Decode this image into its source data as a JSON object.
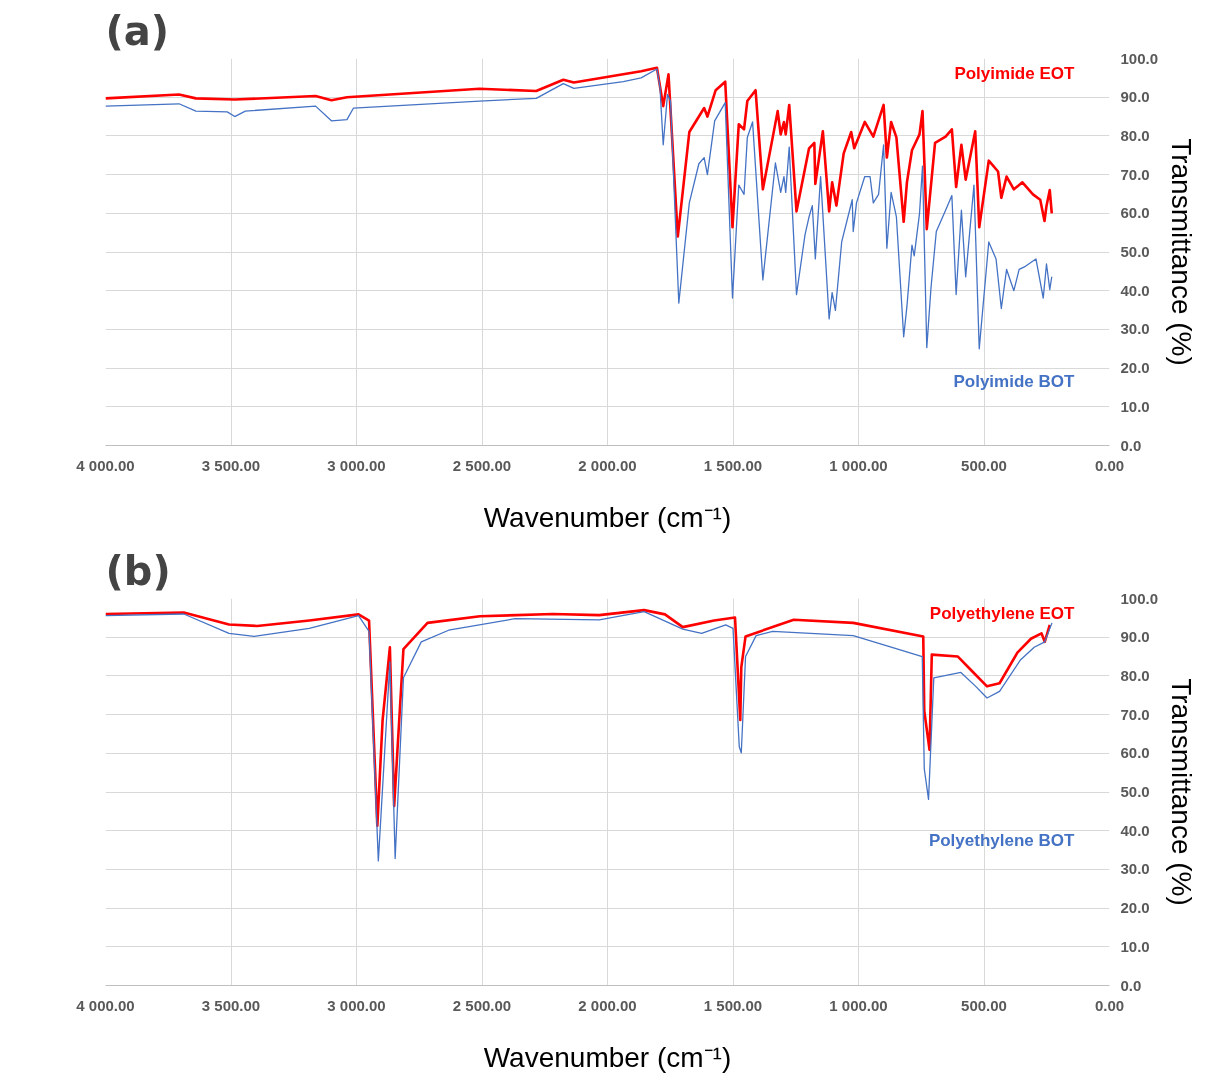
{
  "chart_data": [
    {
      "type": "line",
      "title": "(a)",
      "xlabel": "Wavenumber (cm⁻¹)",
      "ylabel": "Transmittance (%)",
      "xlim": [
        4000,
        0
      ],
      "ylim": [
        0,
        100
      ],
      "xticks": [
        {
          "value": 4000,
          "label": "4 000.00"
        },
        {
          "value": 3500,
          "label": "3 500.00"
        },
        {
          "value": 3000,
          "label": "3 000.00"
        },
        {
          "value": 2500,
          "label": "2 500.00"
        },
        {
          "value": 2000,
          "label": "2 000.00"
        },
        {
          "value": 1500,
          "label": "1 500.00"
        },
        {
          "value": 1000,
          "label": "1 000.00"
        },
        {
          "value": 500,
          "label": "500.00"
        },
        {
          "value": 0,
          "label": "0.00"
        }
      ],
      "yticks": [
        {
          "value": 0,
          "label": "0.0"
        },
        {
          "value": 10,
          "label": "10.0"
        },
        {
          "value": 20,
          "label": "20.0"
        },
        {
          "value": 30,
          "label": "30.0"
        },
        {
          "value": 40,
          "label": "40.0"
        },
        {
          "value": 50,
          "label": "50.0"
        },
        {
          "value": 60,
          "label": "60.0"
        },
        {
          "value": 70,
          "label": "70.0"
        },
        {
          "value": 80,
          "label": "80.0"
        },
        {
          "value": 90,
          "label": "90.0"
        },
        {
          "value": 100,
          "label": "100.0"
        }
      ],
      "grid": true,
      "series": [
        {
          "name": "Polyimide EOT",
          "color": "#ff0000",
          "x": [
            4000,
            3707,
            3640,
            3485,
            3163,
            3100,
            3038,
            2510,
            2284,
            2176,
            2134,
            1866,
            1803,
            1778,
            1757,
            1720,
            1674,
            1615,
            1602,
            1569,
            1531,
            1502,
            1477,
            1456,
            1443,
            1410,
            1381,
            1322,
            1310,
            1297,
            1290,
            1276,
            1247,
            1197,
            1176,
            1172,
            1142,
            1117,
            1105,
            1088,
            1059,
            1029,
            1017,
            975,
            941,
            900,
            887,
            870,
            849,
            820,
            807,
            787,
            757,
            745,
            728,
            695,
            653,
            628,
            611,
            590,
            573,
            535,
            519,
            481,
            444,
            431,
            410,
            381,
            347,
            305,
            276,
            259,
            251,
            238,
            230
          ],
          "values": [
            89.7,
            90.7,
            89.7,
            89.4,
            90.3,
            89.2,
            90,
            92.2,
            91.6,
            94.5,
            93.8,
            96.7,
            97.6,
            87.7,
            95.9,
            54,
            81,
            87.2,
            85,
            91.8,
            94,
            56.4,
            83,
            81.7,
            89,
            91.8,
            66.2,
            86.4,
            80.4,
            83.6,
            80.4,
            88,
            60.5,
            76.8,
            78.2,
            67.6,
            81.2,
            60.5,
            68,
            62,
            75.5,
            81,
            76.8,
            83.6,
            79.8,
            88,
            74.4,
            83.6,
            79.6,
            57.8,
            68,
            76.3,
            80.4,
            86.4,
            55.9,
            78.2,
            79.8,
            81.7,
            66.8,
            77.7,
            68.7,
            81.2,
            56.4,
            73.6,
            70.8,
            64,
            69.5,
            66.2,
            68,
            64.9,
            63.5,
            58,
            61.9,
            66,
            60
          ]
        },
        {
          "name": "Polyimide BOT",
          "color": "#4472c4",
          "x": [
            4000,
            3707,
            3640,
            3515,
            3485,
            3443,
            3163,
            3100,
            3038,
            3012,
            2510,
            2284,
            2176,
            2134,
            1937,
            1866,
            1803,
            1791,
            1778,
            1761,
            1749,
            1716,
            1674,
            1636,
            1615,
            1602,
            1573,
            1531,
            1502,
            1477,
            1456,
            1443,
            1422,
            1381,
            1331,
            1310,
            1297,
            1290,
            1276,
            1247,
            1213,
            1197,
            1184,
            1172,
            1151,
            1117,
            1105,
            1092,
            1067,
            1025,
            1021,
            1008,
            975,
            954,
            941,
            920,
            900,
            887,
            870,
            849,
            820,
            807,
            787,
            778,
            757,
            745,
            728,
            711,
            690,
            653,
            628,
            611,
            590,
            573,
            540,
            519,
            481,
            452,
            431,
            410,
            381,
            360,
            335,
            293,
            264,
            251,
            238,
            230
          ],
          "values": [
            87.7,
            88.3,
            86.4,
            86.2,
            85,
            86.4,
            87.7,
            83.9,
            84.2,
            87.2,
            89,
            89.7,
            93.5,
            92.3,
            94,
            95,
            97.3,
            92.6,
            77.7,
            90.7,
            89,
            36.8,
            62.7,
            72.8,
            74.4,
            70,
            83.9,
            88.6,
            38.1,
            67.3,
            64.9,
            79.6,
            83.6,
            42.8,
            73,
            65.4,
            69.5,
            65.4,
            77.1,
            39,
            54.5,
            59.1,
            62,
            48.2,
            69.5,
            32.7,
            39.5,
            34.9,
            52.6,
            63.5,
            55.3,
            62.7,
            69.5,
            69.5,
            62.7,
            64.9,
            77.7,
            51,
            65.4,
            59.1,
            28.1,
            36,
            51.8,
            49,
            59.9,
            72.2,
            25.3,
            40.9,
            55.3,
            60.8,
            64.6,
            39,
            60.8,
            43.6,
            67.3,
            25,
            52.6,
            48.2,
            35.4,
            45.5,
            40,
            45.5,
            46.3,
            48.2,
            38.1,
            46.9,
            40.3,
            43.6
          ]
        }
      ]
    },
    {
      "type": "line",
      "title": "(b)",
      "xlabel": "Wavenumber (cm⁻¹)",
      "ylabel": "Transmittance (%)",
      "xlim": [
        4000,
        0
      ],
      "ylim": [
        0,
        100
      ],
      "xticks": [
        {
          "value": 4000,
          "label": "4 000.00"
        },
        {
          "value": 3500,
          "label": "3 500.00"
        },
        {
          "value": 3000,
          "label": "3 000.00"
        },
        {
          "value": 2500,
          "label": "2 500.00"
        },
        {
          "value": 2000,
          "label": "2 000.00"
        },
        {
          "value": 1500,
          "label": "1 500.00"
        },
        {
          "value": 1000,
          "label": "1 000.00"
        },
        {
          "value": 500,
          "label": "500.00"
        },
        {
          "value": 0,
          "label": "0.00"
        }
      ],
      "yticks": [
        {
          "value": 0,
          "label": "0.0"
        },
        {
          "value": 10,
          "label": "10.0"
        },
        {
          "value": 20,
          "label": "20.0"
        },
        {
          "value": 30,
          "label": "30.0"
        },
        {
          "value": 40,
          "label": "40.0"
        },
        {
          "value": 50,
          "label": "50.0"
        },
        {
          "value": 60,
          "label": "60.0"
        },
        {
          "value": 70,
          "label": "70.0"
        },
        {
          "value": 80,
          "label": "80.0"
        },
        {
          "value": 90,
          "label": "90.0"
        },
        {
          "value": 100,
          "label": "100.0"
        }
      ],
      "grid": true,
      "series": [
        {
          "name": "Polyethylene EOT",
          "color": "#ff0000",
          "x": [
            4000,
            3688,
            3508,
            3396,
            3188,
            2992,
            2950,
            2917,
            2896,
            2867,
            2850,
            2813,
            2717,
            2508,
            2217,
            2033,
            1854,
            1771,
            1700,
            1575,
            1492,
            1471,
            1467,
            1450,
            1258,
            1021,
            742,
            738,
            717,
            708,
            604,
            550,
            488,
            438,
            367,
            313,
            271,
            258,
            238
          ],
          "values": [
            96,
            96.4,
            93.3,
            92.9,
            94.3,
            95.9,
            94.3,
            41.3,
            68.6,
            87.4,
            46.4,
            86.9,
            93.7,
            95.4,
            96,
            95.7,
            97,
            95.9,
            92.6,
            94.3,
            95.1,
            68.6,
            82.2,
            90.2,
            94.5,
            93.7,
            90.2,
            71,
            60.9,
            85.5,
            85,
            81.4,
            77.3,
            78.1,
            86,
            89.6,
            91,
            88.8,
            93.2
          ]
        },
        {
          "name": "Polyethylene BOT",
          "color": "#4472c4",
          "x": [
            4000,
            3688,
            3508,
            3408,
            3188,
            2992,
            2950,
            2913,
            2867,
            2846,
            2813,
            2742,
            2633,
            2367,
            2033,
            1854,
            1700,
            1625,
            1529,
            1500,
            1475,
            1467,
            1450,
            1408,
            1342,
            1021,
            883,
            746,
            738,
            721,
            700,
            592,
            533,
            488,
            438,
            354,
            300,
            258,
            229
          ],
          "values": [
            95.6,
            96,
            91,
            90.2,
            92.3,
            95.6,
            91.5,
            32.2,
            83.6,
            32.8,
            79.5,
            88.8,
            91.8,
            94.8,
            94.5,
            96.6,
            92.1,
            91,
            93.2,
            92.3,
            61.7,
            60.1,
            85,
            90.4,
            91.5,
            90.4,
            87.7,
            85,
            56,
            48.1,
            79.5,
            80.9,
            77.3,
            74.3,
            76,
            84.2,
            87.4,
            88.8,
            93.7
          ]
        }
      ]
    }
  ]
}
